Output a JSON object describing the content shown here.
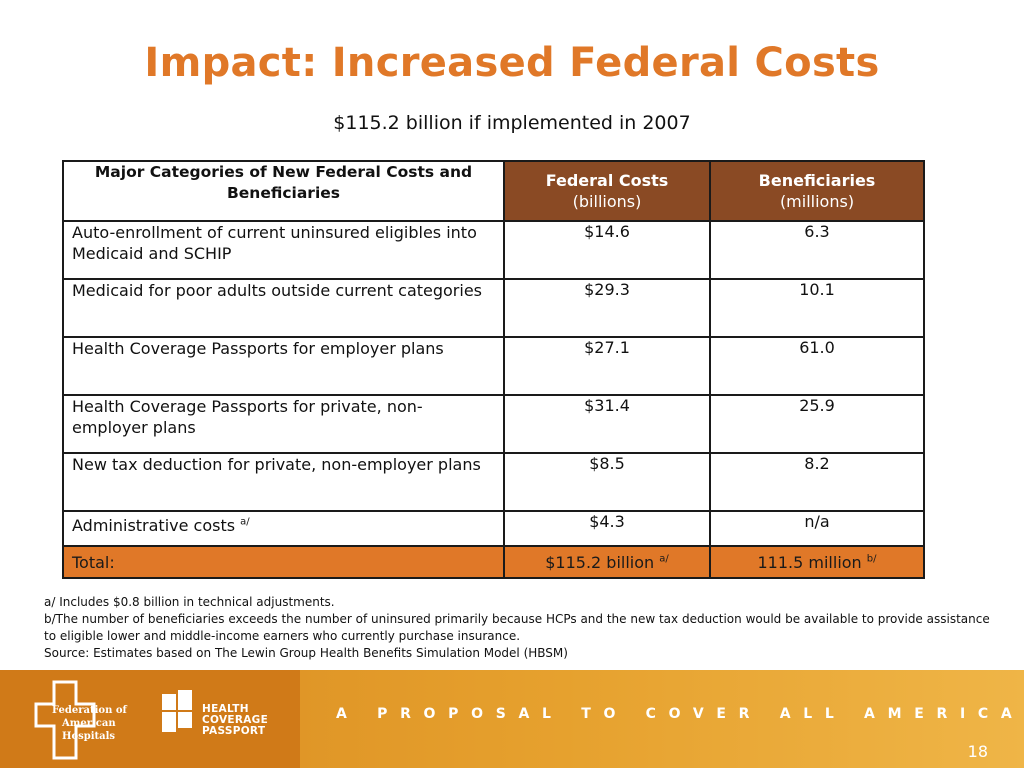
{
  "title": "Impact: Increased Federal Costs",
  "subtitle": "$115.2 billion if implemented in 2007",
  "table": {
    "corner_label": "Major Categories of New Federal Costs and Beneficiaries",
    "col_federal_costs": "Federal Costs",
    "col_federal_costs_unit": "(billions)",
    "col_beneficiaries": "Beneficiaries",
    "col_beneficiaries_unit": "(millions)",
    "rows": [
      {
        "label": "Auto-enrollment of current uninsured eligibles into Medicaid and SCHIP",
        "label_sup": "",
        "cost": "$14.6",
        "beneficiaries": "6.3"
      },
      {
        "label": "Medicaid for poor adults outside current categories",
        "label_sup": "",
        "cost": "$29.3",
        "beneficiaries": "10.1"
      },
      {
        "label": "Health Coverage Passports for employer plans",
        "label_sup": "",
        "cost": "$27.1",
        "beneficiaries": "61.0"
      },
      {
        "label": "Health Coverage Passports for private, non-employer plans",
        "label_sup": "",
        "cost": "$31.4",
        "beneficiaries": "25.9"
      },
      {
        "label": "New tax deduction for private, non-employer plans",
        "label_sup": "",
        "cost": "$8.5",
        "beneficiaries": "8.2"
      },
      {
        "label": "Administrative costs",
        "label_sup": "a/",
        "cost": "$4.3",
        "beneficiaries": "n/a"
      }
    ],
    "total": {
      "label": "Total:",
      "cost": "$115.2 billion",
      "cost_sup": "a/",
      "beneficiaries": "111.5 million",
      "beneficiaries_sup": "b/"
    }
  },
  "notes": [
    "a/ Includes $0.8 billion in technical adjustments.",
    "b/The number of beneficiaries exceeds the number of uninsured primarily because HCPs and the new tax deduction would be available to provide assistance to eligible lower and middle-income earners who currently purchase insurance.",
    "Source: Estimates based on The Lewin Group Health Benefits Simulation Model (HBSM)"
  ],
  "footer": {
    "fah_logo_lines": [
      "Federation of",
      "American",
      "Hospitals"
    ],
    "hcp_logo_lines": [
      "HEALTH",
      "COVERAGE",
      "PASSPORT"
    ],
    "tagline": "A PROPOSAL TO COVER ALL AMERICANS",
    "page_number": "18"
  },
  "colors": {
    "title_orange": "#e07828",
    "header_brown": "#8a4a24",
    "total_row_orange": "#e07828",
    "footer_gold": "#e6a12e"
  }
}
